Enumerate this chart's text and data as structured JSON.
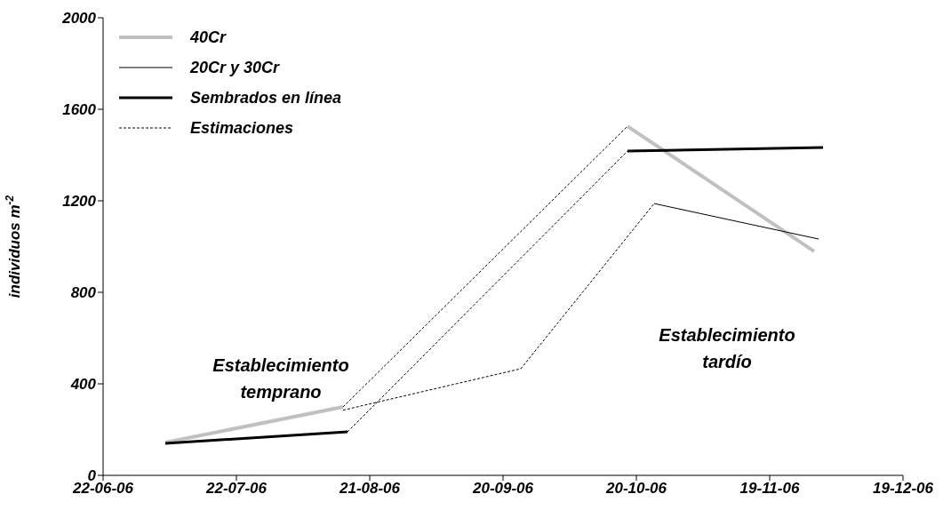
{
  "chart_data": {
    "type": "line",
    "ylabel": "individuos m$^{-2}$",
    "xlim": [
      "2006-06-22",
      "2006-12-19"
    ],
    "xticks": [
      {
        "value": "2006-06-22",
        "label": "22-06-06"
      },
      {
        "value": "2006-07-22",
        "label": "22-07-06"
      },
      {
        "value": "2006-08-21",
        "label": "21-08-06"
      },
      {
        "value": "2006-09-20",
        "label": "20-09-06"
      },
      {
        "value": "2006-10-20",
        "label": "20-10-06"
      },
      {
        "value": "2006-11-19",
        "label": "19-11-06"
      },
      {
        "value": "2006-12-19",
        "label": "19-12-06"
      }
    ],
    "ylim": [
      0,
      2000
    ],
    "yticks": [
      0,
      400,
      800,
      1200,
      1600,
      2000
    ],
    "grid": false,
    "legend": "top left",
    "marker": "none",
    "series": [
      {
        "name": "40Cr",
        "color": "#c0c0c0",
        "line_style": "solid",
        "x": [
          "2006-07-06",
          "2006-08-15"
        ],
        "values": [
          144,
          299
        ]
      },
      {
        "color": "#c0c0c0",
        "line_style": "solid",
        "x": [
          "2006-10-18",
          "2006-11-29"
        ],
        "values": [
          1526,
          979
        ]
      },
      {
        "name": "20Cr y 30Cr",
        "color": "#000000",
        "line_style": "solid",
        "x": [
          "2006-10-24",
          "2006-11-30"
        ],
        "values": [
          1188,
          1033
        ]
      },
      {
        "name": "Sembrados en línea",
        "color": "#000000",
        "line_style": "solid",
        "x": [
          "2006-07-06",
          "2006-08-16"
        ],
        "values": [
          140,
          190
        ]
      },
      {
        "color": "#000000",
        "line_style": "solid",
        "x": [
          "2006-10-18",
          "2006-12-01"
        ],
        "values": [
          1417,
          1433
        ]
      },
      {
        "name": "Estimaciones",
        "color": "#000000",
        "line_style": "dashed",
        "x": [
          "2006-08-15",
          "2006-10-18"
        ],
        "values": [
          299,
          1526
        ]
      },
      {
        "color": "#000000",
        "line_style": "dashed",
        "x": [
          "2006-08-16",
          "2006-10-18"
        ],
        "values": [
          190,
          1417
        ]
      },
      {
        "color": "#000000",
        "line_style": "dashed",
        "x": [
          "2006-08-15",
          "2006-09-24",
          "2006-10-24"
        ],
        "values": [
          285,
          466,
          1188
        ]
      }
    ],
    "annotations": [
      "Establecimiento temprano",
      "Establecimiento tardío"
    ]
  }
}
